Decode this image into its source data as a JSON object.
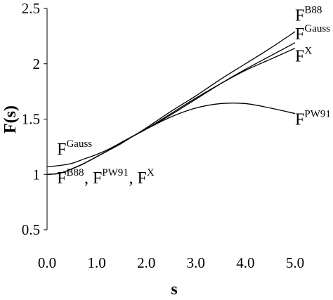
{
  "chart_data": {
    "type": "line",
    "xlabel": "s",
    "ylabel": "F(s)",
    "xlim": [
      0.0,
      5.0
    ],
    "ylim": [
      0.5,
      2.5
    ],
    "x_ticks": [
      "0.0",
      "1.0",
      "2.0",
      "3.0",
      "4.0",
      "5.0"
    ],
    "y_ticks": [
      "0.5",
      "1",
      "1.5",
      "2",
      "2.5"
    ],
    "grid": false,
    "legend": "none",
    "series": [
      {
        "name": "B88",
        "x": [
          0.0,
          0.25,
          0.5,
          0.75,
          1.0,
          1.25,
          1.5,
          1.75,
          2.0,
          2.5,
          3.0,
          3.5,
          4.0,
          4.5,
          5.0
        ],
        "y": [
          1.0,
          1.01,
          1.05,
          1.1,
          1.16,
          1.22,
          1.29,
          1.35,
          1.42,
          1.57,
          1.71,
          1.86,
          2.0,
          2.14,
          2.29
        ]
      },
      {
        "name": "Gauss",
        "x": [
          0.0,
          0.25,
          0.5,
          0.75,
          1.0,
          1.25,
          1.5,
          1.75,
          2.0,
          2.5,
          3.0,
          3.5,
          4.0,
          4.5,
          5.0
        ],
        "y": [
          1.07,
          1.08,
          1.1,
          1.14,
          1.18,
          1.23,
          1.29,
          1.35,
          1.41,
          1.54,
          1.68,
          1.82,
          1.95,
          2.07,
          2.19
        ]
      },
      {
        "name": "X",
        "x": [
          0.0,
          0.25,
          0.5,
          0.75,
          1.0,
          1.25,
          1.5,
          1.75,
          2.0,
          2.5,
          3.0,
          3.5,
          4.0,
          4.5,
          5.0
        ],
        "y": [
          1.0,
          1.01,
          1.05,
          1.1,
          1.16,
          1.22,
          1.28,
          1.35,
          1.41,
          1.55,
          1.69,
          1.82,
          1.94,
          2.04,
          2.14
        ]
      },
      {
        "name": "PW91",
        "x": [
          0.0,
          0.25,
          0.5,
          0.75,
          1.0,
          1.25,
          1.5,
          1.75,
          2.0,
          2.5,
          3.0,
          3.5,
          4.0,
          4.5,
          5.0
        ],
        "y": [
          1.0,
          1.01,
          1.05,
          1.1,
          1.16,
          1.22,
          1.29,
          1.35,
          1.41,
          1.52,
          1.6,
          1.64,
          1.64,
          1.6,
          1.55
        ]
      }
    ],
    "annotations": [
      {
        "base": "F",
        "sup": "B88",
        "x": 5.0,
        "y": 2.39
      },
      {
        "base": "F",
        "sup": "Gauss",
        "x": 5.0,
        "y": 2.22
      },
      {
        "base": "F",
        "sup": "X",
        "x": 5.0,
        "y": 2.02
      },
      {
        "base": "F",
        "sup": "PW91",
        "x": 5.0,
        "y": 1.45
      },
      {
        "base": "F",
        "sup": "Gauss",
        "x": 0.2,
        "y": 1.18
      },
      {
        "base": "F",
        "sup": "B88",
        "x": 0.2,
        "y": 0.92
      },
      {
        "base": ", F",
        "sup": "PW91",
        "x": 0.75,
        "y": 0.92
      },
      {
        "base": ", F",
        "sup": "X",
        "x": 1.65,
        "y": 0.92
      }
    ]
  }
}
